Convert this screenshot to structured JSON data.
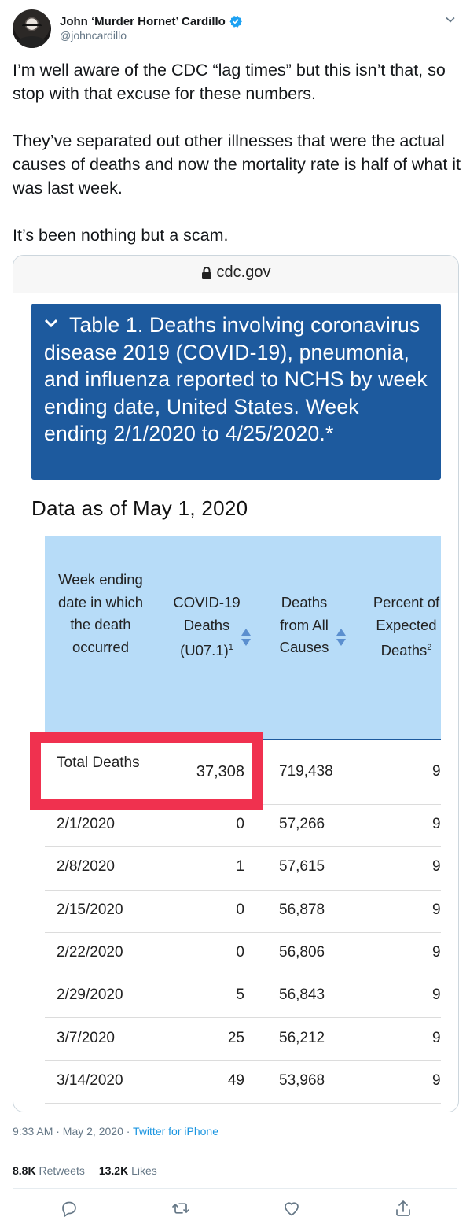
{
  "author": {
    "display_name": "John ‘Murder Hornet’ Cardillo",
    "handle": "@johncardillo"
  },
  "tweet": {
    "paragraphs": [
      "I’m well aware of the CDC “lag times” but this isn’t that, so stop with that excuse for these numbers.",
      "They’ve separated out other illnesses that were the actual causes of deaths and now the mortality rate is half of what it was last week.",
      "It’s been nothing but a scam."
    ]
  },
  "media": {
    "url": "cdc.gov",
    "banner_title": "Table 1. Deaths involving coronavirus disease 2019 (COVID-19), pneumonia, and influenza reported to NCHS by week ending date, United States. Week ending 2/1/2020 to 4/25/2020.*",
    "data_as_of": "Data as of May 1, 2020",
    "columns": {
      "date": "Week ending date in which the death occurred",
      "covid_main": "COVID-19 Deaths (U07.1)",
      "covid_sup": "1",
      "all": "Deaths from All Causes",
      "pct_main": "Percent of Expected Deaths",
      "pct_sup": "2"
    },
    "total": {
      "label": "Total Deaths",
      "covid": "37,308",
      "all": "719,438",
      "pct": "9"
    },
    "rows": [
      {
        "date": "2/1/2020",
        "covid": "0",
        "all": "57,266",
        "pct": "9"
      },
      {
        "date": "2/8/2020",
        "covid": "1",
        "all": "57,615",
        "pct": "9"
      },
      {
        "date": "2/15/2020",
        "covid": "0",
        "all": "56,878",
        "pct": "9"
      },
      {
        "date": "2/22/2020",
        "covid": "0",
        "all": "56,806",
        "pct": "9"
      },
      {
        "date": "2/29/2020",
        "covid": "5",
        "all": "56,843",
        "pct": "9"
      },
      {
        "date": "3/7/2020",
        "covid": "25",
        "all": "56,212",
        "pct": "9"
      },
      {
        "date": "3/14/2020",
        "covid": "49",
        "all": "53,968",
        "pct": "9"
      }
    ],
    "highlight_color": "#f0314f",
    "banner_color": "#1d5a9e",
    "header_color": "#b7dcf8"
  },
  "meta": {
    "time": "9:33 AM · May 2, 2020 · ",
    "source": "Twitter for iPhone"
  },
  "stats": {
    "retweets_count": "8.8K",
    "retweets_label": "Retweets",
    "likes_count": "13.2K",
    "likes_label": "Likes"
  },
  "icons": [
    "verified-icon",
    "chevron-down-icon",
    "lock-icon",
    "reply-icon",
    "retweet-icon",
    "like-icon",
    "share-icon"
  ]
}
